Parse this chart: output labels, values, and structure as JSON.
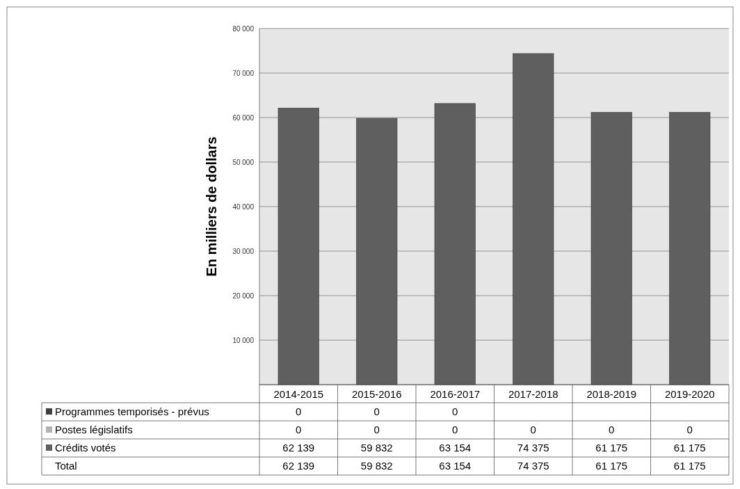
{
  "chart_data": {
    "type": "bar",
    "ylabel": "En milliers  de dollars",
    "categories": [
      "2014-2015",
      "2015-2016",
      "2016-2017",
      "2017-2018",
      "2018-2019",
      "2019-2020"
    ],
    "series": [
      {
        "name": "Programmes temporisés - prévus",
        "color": "#404040",
        "values": [
          0,
          0,
          0,
          null,
          null,
          null
        ],
        "value_labels": [
          "0",
          "0",
          "0",
          null,
          null,
          null
        ]
      },
      {
        "name": "Postes législatifs",
        "color": "#b3b3b3",
        "values": [
          0,
          0,
          0,
          0,
          0,
          0
        ],
        "value_labels": [
          "0",
          "0",
          "0",
          "0",
          "0",
          "0"
        ]
      },
      {
        "name": "Crédits votés",
        "color": "#5f5f5f",
        "values": [
          62139,
          59832,
          63154,
          74375,
          61175,
          61175
        ],
        "value_labels": [
          "62 139",
          "59 832",
          "63 154",
          "74 375",
          "61 175",
          "61 175"
        ]
      }
    ],
    "annotations": [
      "Total",
      "62 139",
      "59 832",
      "63 154",
      "74 375",
      "61 175",
      "61 175"
    ],
    "ylim": [
      0,
      80000
    ],
    "yticks": [
      {
        "value": 0,
        "label": null
      },
      {
        "value": 10000,
        "label": "10 000"
      },
      {
        "value": 20000,
        "label": "20 000"
      },
      {
        "value": 30000,
        "label": "30 000"
      },
      {
        "value": 40000,
        "label": "40 000"
      },
      {
        "value": 50000,
        "label": "50 000"
      },
      {
        "value": 60000,
        "label": "60 000"
      },
      {
        "value": 70000,
        "label": "70 000"
      },
      {
        "value": 80000,
        "label": "80 000"
      }
    ],
    "grid": "y",
    "legend": "bottom"
  }
}
